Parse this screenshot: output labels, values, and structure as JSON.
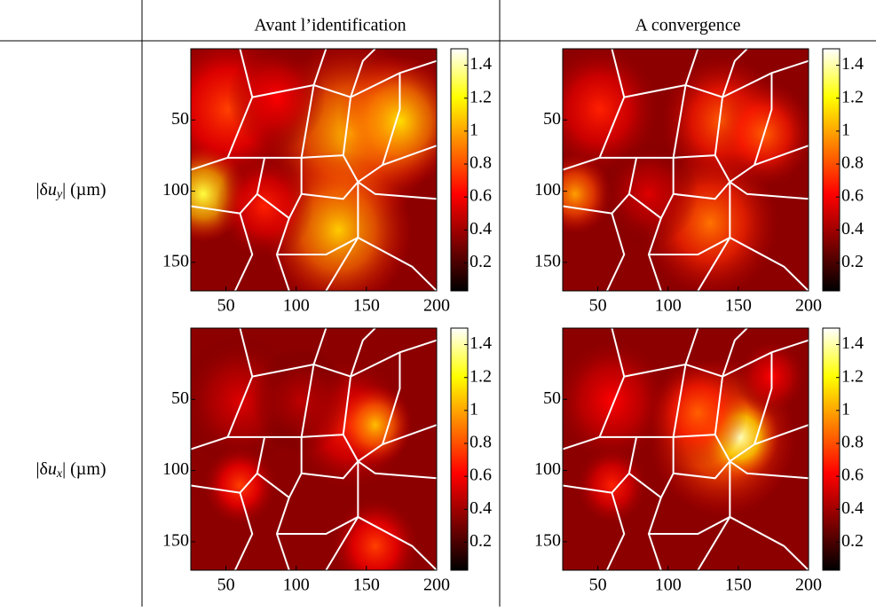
{
  "table": {
    "columns": [
      "Avant l’identification",
      "A convergence"
    ],
    "rows": [
      {
        "prefix": "|δ",
        "var": "u",
        "sub": "y",
        "suffix": "| (µm)"
      },
      {
        "prefix": "|δ",
        "var": "u",
        "sub": "x",
        "suffix": "| (µm)"
      }
    ]
  },
  "panels": {
    "xlim": [
      25,
      200
    ],
    "ylim": [
      0,
      170
    ],
    "xticks": [
      50,
      100,
      150,
      200
    ],
    "yticks": [
      50,
      100,
      150
    ],
    "clim": [
      0.03,
      1.5
    ],
    "cticks": [
      0.2,
      0.4,
      0.6,
      0.8,
      1,
      1.2,
      1.4
    ]
  }
}
